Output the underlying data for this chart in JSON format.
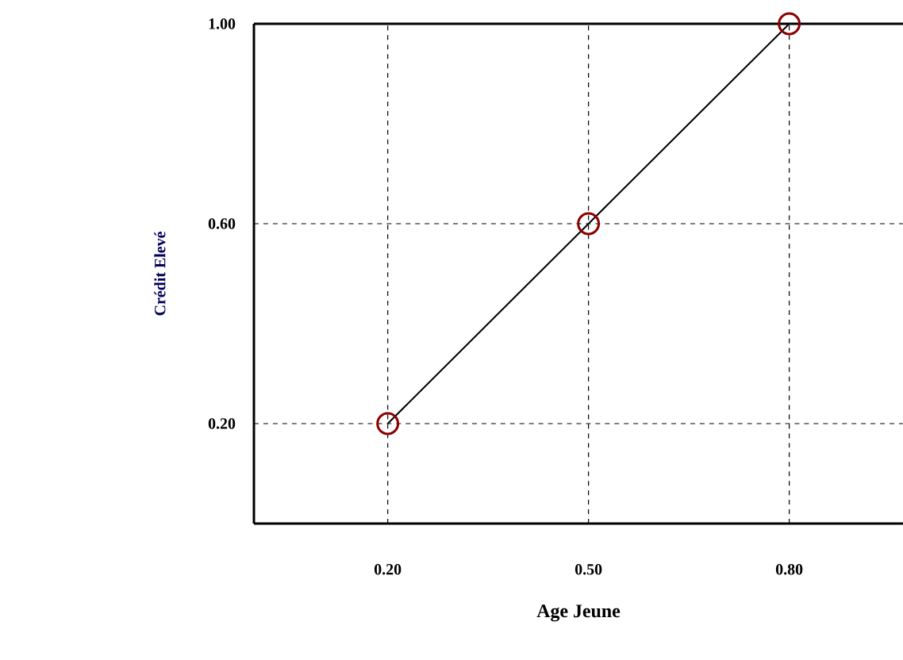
{
  "chart_data": {
    "type": "line",
    "xlabel": "Age Jeune",
    "ylabel": "Crédit Elevé",
    "x": [
      0.2,
      0.5,
      0.8
    ],
    "series": [
      {
        "color": "#000000",
        "values": [
          0.2,
          0.6,
          1.0
        ]
      }
    ],
    "xlim": [
      0,
      0.97
    ],
    "ylim": [
      0,
      1.0
    ],
    "xticks": [
      {
        "value": 0.2,
        "label": "0.20"
      },
      {
        "value": 0.5,
        "label": "0.50"
      },
      {
        "value": 0.8,
        "label": "0.80"
      }
    ],
    "yticks": [
      {
        "value": 0.2,
        "label": "0.20"
      },
      {
        "value": 0.6,
        "label": "0.60"
      },
      {
        "value": 1.0,
        "label": "1.00"
      }
    ],
    "grid": true,
    "marker": "circle",
    "line_style": "solid"
  }
}
